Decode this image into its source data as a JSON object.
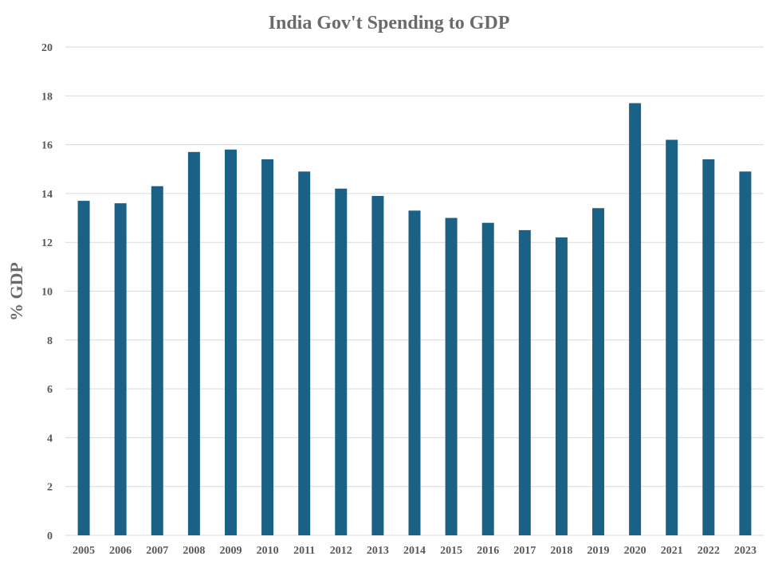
{
  "chart_data": {
    "type": "bar",
    "title": "India Gov't Spending to GDP",
    "xlabel": "",
    "ylabel": "% GDP",
    "categories": [
      "2005",
      "2006",
      "2007",
      "2008",
      "2009",
      "2010",
      "2011",
      "2012",
      "2013",
      "2014",
      "2015",
      "2016",
      "2017",
      "2018",
      "2019",
      "2020",
      "2021",
      "2022",
      "2023"
    ],
    "values": [
      13.7,
      13.6,
      14.3,
      15.7,
      15.8,
      15.4,
      14.9,
      14.2,
      13.9,
      13.3,
      13.0,
      12.8,
      12.5,
      12.2,
      13.4,
      17.7,
      16.2,
      15.4,
      14.9
    ],
    "ylim": [
      0,
      20
    ],
    "yticks": [
      "0",
      "2",
      "4",
      "6",
      "8",
      "10",
      "12",
      "14",
      "16",
      "18",
      "20"
    ],
    "grid": true,
    "legend": "none",
    "bar_color": "#1a6185"
  }
}
